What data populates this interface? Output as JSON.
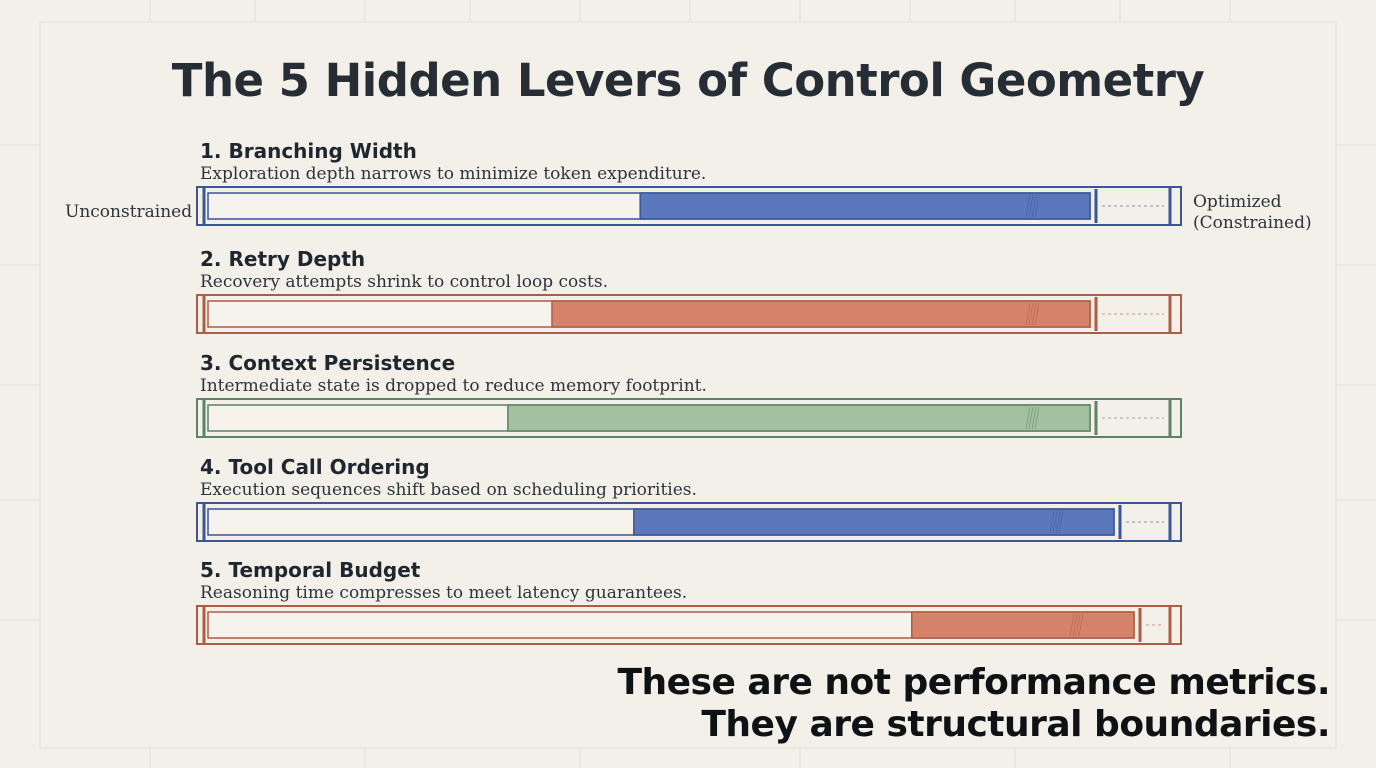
{
  "title": "The 5 Hidden Levers of Control Geometry",
  "scale": {
    "left": "Unconstrained",
    "right_line1": "Optimized",
    "right_line2": "(Constrained)"
  },
  "levers": [
    {
      "title": "1. Branching Width",
      "description": "Exploration depth narrows to minimize token expenditure.",
      "fill_fraction": 0.51,
      "color": "#5a78bb",
      "stroke": "#3b5596"
    },
    {
      "title": "2. Retry Depth",
      "description": "Recovery attempts shrink to control loop costs.",
      "fill_fraction": 0.61,
      "color": "#d5836a",
      "stroke": "#ad5c46"
    },
    {
      "title": "3. Context Persistence",
      "description": "Intermediate state is dropped to reduce memory footprint.",
      "fill_fraction": 0.66,
      "color": "#a3c1a1",
      "stroke": "#5d8264"
    },
    {
      "title": "4. Tool Call Ordering",
      "description": "Execution sequences shift based on scheduling priorities.",
      "fill_fraction": 0.53,
      "color": "#5a78bb",
      "stroke": "#3b5596"
    },
    {
      "title": "5. Temporal Budget",
      "description": "Reasoning time compresses to meet latency guarantees.",
      "fill_fraction": 0.24,
      "color": "#d5836a",
      "stroke": "#ad5c46"
    }
  ],
  "closing": {
    "line1": "These are not performance metrics.",
    "line2": "They are structural boundaries."
  }
}
